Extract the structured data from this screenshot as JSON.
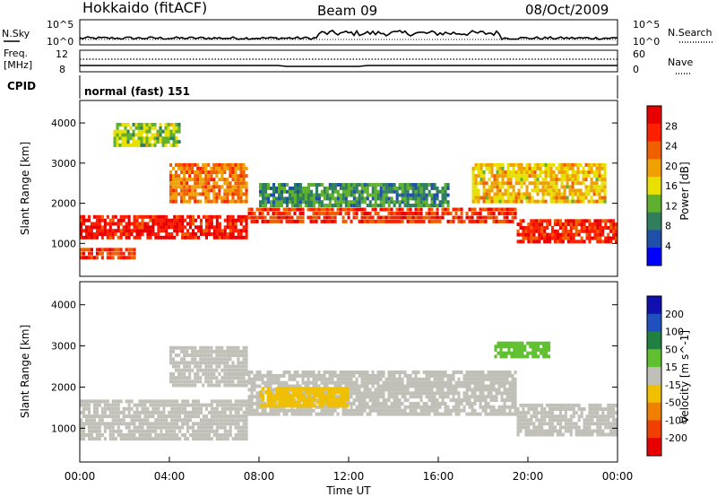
{
  "header": {
    "station": "Hokkaido (fitACF)",
    "beam": "Beam 09",
    "date": "08/Oct/2009"
  },
  "aux_panels": {
    "nsky_label": "N.Sky",
    "nsky_ticks": [
      "10^5",
      "10^0"
    ],
    "nsearch_label": "N.Search",
    "nsearch_ticks": [
      "10^5",
      "10^0"
    ],
    "freq_label_line1": "Freq.",
    "freq_label_line2": "[MHz]",
    "freq_ticks": [
      "12",
      "8"
    ],
    "nave_label": "Nave",
    "nave_ticks": [
      "60",
      "0"
    ],
    "cpid_label": "CPID",
    "cpid_value": "normal (fast) 151"
  },
  "colors": {
    "power_scale": [
      "#0000ff",
      "#1f4fa8",
      "#2f7f5f",
      "#5fb02f",
      "#e8e000",
      "#f0a000",
      "#f06000",
      "#ff2000",
      "#e80000"
    ],
    "velocity_scale": [
      "#1010b0",
      "#2050c0",
      "#208040",
      "#60c030",
      "#c0c0b8",
      "#f0c000",
      "#f08000",
      "#f04000",
      "#e80000"
    ],
    "ground_scatter": "#c0c0b8"
  },
  "chart_data": [
    {
      "type": "heatmap",
      "panel": "power",
      "xlabel": "",
      "ylabel": "Slant Range [km]",
      "yticks": [
        "1000",
        "2000",
        "3000",
        "4000"
      ],
      "ylim": [
        180,
        4560
      ],
      "colorbar": {
        "label": "Power [dB]",
        "ticks": [
          "4",
          "8",
          "12",
          "16",
          "20",
          "24",
          "28"
        ],
        "range": [
          0,
          32
        ]
      },
      "regions": [
        {
          "t0": 0.0,
          "t1": 7.5,
          "r0": 1100,
          "r1": 1700,
          "value": 28
        },
        {
          "t0": 7.5,
          "t1": 19.5,
          "r0": 1500,
          "r1": 1900,
          "value": 26
        },
        {
          "t0": 19.5,
          "t1": 24.0,
          "r0": 1000,
          "r1": 1600,
          "value": 27
        },
        {
          "t0": 8.0,
          "t1": 16.5,
          "r0": 1900,
          "r1": 2500,
          "value": 10
        },
        {
          "t0": 4.0,
          "t1": 7.5,
          "r0": 2000,
          "r1": 3000,
          "value": 22
        },
        {
          "t0": 0.0,
          "t1": 2.5,
          "r0": 600,
          "r1": 900,
          "value": 26
        },
        {
          "t0": 17.5,
          "t1": 23.5,
          "r0": 2000,
          "r1": 3000,
          "value": 18
        },
        {
          "t0": 1.5,
          "t1": 4.5,
          "r0": 3400,
          "r1": 4000,
          "value": 14
        }
      ]
    },
    {
      "type": "heatmap",
      "panel": "velocity",
      "xlabel": "Time UT",
      "ylabel": "Slant Range [km]",
      "xticks": [
        "00:00",
        "04:00",
        "08:00",
        "12:00",
        "16:00",
        "20:00",
        "00:00"
      ],
      "yticks": [
        "1000",
        "2000",
        "3000",
        "4000"
      ],
      "ylim": [
        180,
        4560
      ],
      "colorbar": {
        "label": "Velocity [m s^-1]",
        "ticks": [
          "200",
          "100",
          "50",
          "15",
          "-15",
          "-50",
          "-100",
          "-200"
        ],
        "range": [
          -300,
          300
        ]
      },
      "regions": [
        {
          "t0": 0.0,
          "t1": 7.5,
          "r0": 700,
          "r1": 1700,
          "value": 0
        },
        {
          "t0": 7.5,
          "t1": 19.5,
          "r0": 1300,
          "r1": 2400,
          "value": 0
        },
        {
          "t0": 19.5,
          "t1": 24.0,
          "r0": 800,
          "r1": 1600,
          "value": 0
        },
        {
          "t0": 4.0,
          "t1": 7.5,
          "r0": 2000,
          "r1": 3000,
          "value": 0
        },
        {
          "t0": 18.5,
          "t1": 21.0,
          "r0": 2700,
          "r1": 3100,
          "value": 60
        },
        {
          "t0": 8.0,
          "t1": 12.0,
          "r0": 1500,
          "r1": 2000,
          "value": -40
        }
      ]
    }
  ]
}
